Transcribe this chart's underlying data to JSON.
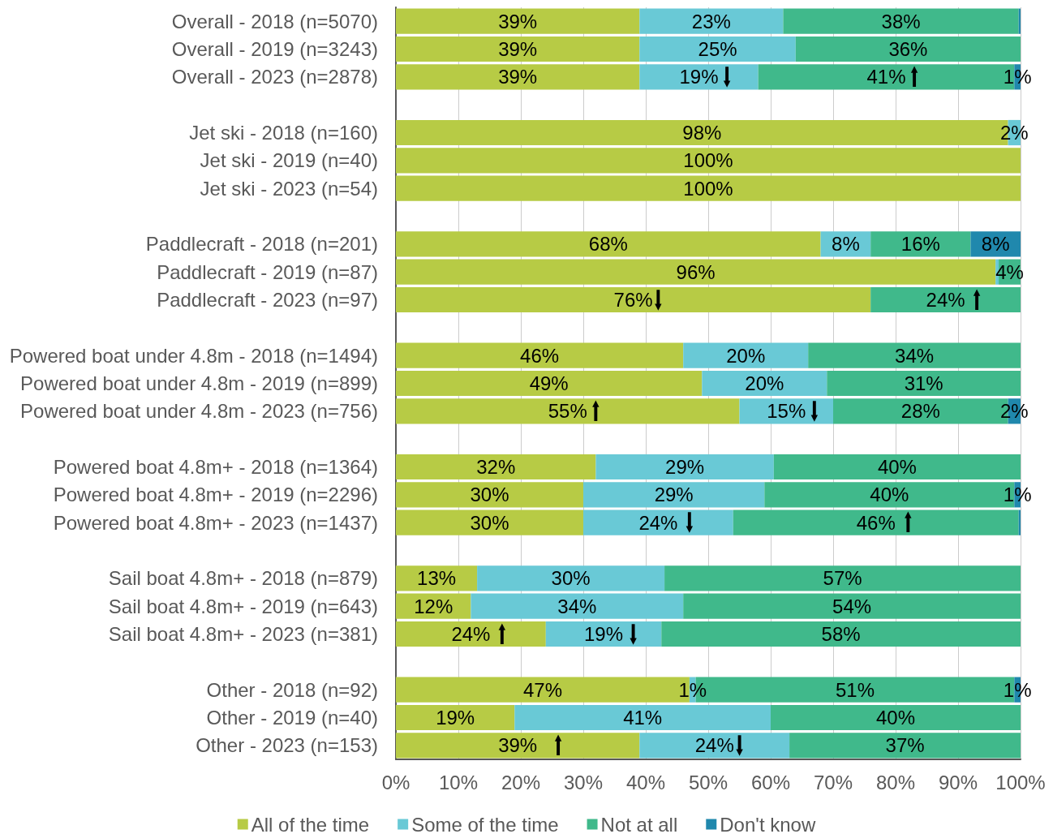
{
  "chart_data": {
    "type": "bar",
    "orientation": "horizontal",
    "stacked": true,
    "categories": [
      "Overall - 2018 (n=5070)",
      "Overall - 2019 (n=3243)",
      "Overall - 2023 (n=2878)",
      null,
      "Jet ski - 2018 (n=160)",
      "Jet ski - 2019 (n=40)",
      "Jet ski - 2023 (n=54)",
      null,
      "Paddlecraft - 2018 (n=201)",
      "Paddlecraft - 2019 (n=87)",
      "Paddlecraft - 2023 (n=97)",
      null,
      "Powered boat under 4.8m - 2018 (n=1494)",
      "Powered boat under 4.8m - 2019 (n=899)",
      "Powered boat under 4.8m - 2023 (n=756)",
      null,
      "Powered boat 4.8m+ - 2018 (n=1364)",
      "Powered boat 4.8m+ - 2019 (n=2296)",
      "Powered boat 4.8m+ - 2023 (n=1437)",
      null,
      "Sail boat 4.8m+ - 2018 (n=879)",
      "Sail boat 4.8m+ - 2019 (n=643)",
      "Sail boat 4.8m+ - 2023 (n=381)",
      null,
      "Other - 2018 (n=92)",
      "Other - 2019 (n=40)",
      "Other - 2023 (n=153)"
    ],
    "series": [
      {
        "name": "All of the time",
        "color": "#b7cb45",
        "values": [
          39,
          39,
          39,
          null,
          98,
          100,
          100,
          null,
          68,
          96,
          76,
          null,
          46,
          49,
          55,
          null,
          32,
          30,
          30,
          null,
          13,
          12,
          24,
          null,
          47,
          19,
          39
        ],
        "value_labels": [
          "39%",
          "39%",
          "39%",
          null,
          "98%",
          "100%",
          "100%",
          null,
          "68%",
          "96%",
          "76%",
          null,
          "46%",
          "49%",
          "55%",
          null,
          "32%",
          "30%",
          "30%",
          null,
          "13%",
          "12%",
          "24%",
          null,
          "47%",
          "19%",
          "39%"
        ]
      },
      {
        "name": "Some of the time",
        "color": "#69c9d6",
        "values": [
          23,
          25,
          19,
          null,
          2,
          null,
          null,
          null,
          8,
          0.5,
          null,
          null,
          20,
          20,
          15,
          null,
          28.5,
          29,
          24,
          null,
          30,
          34,
          18.5,
          null,
          1,
          41,
          24
        ],
        "value_labels": [
          "23%",
          "25%",
          "19%",
          null,
          "2%",
          null,
          null,
          null,
          "8%",
          null,
          null,
          null,
          "20%",
          "20%",
          "15%",
          null,
          "29%",
          "29%",
          "24%",
          null,
          "30%",
          "34%",
          "19%",
          null,
          "1%",
          "41%",
          "24%"
        ]
      },
      {
        "name": "Not at all",
        "color": "#40b98b",
        "values": [
          37.7,
          36,
          41,
          null,
          null,
          null,
          null,
          null,
          16,
          3.5,
          24,
          null,
          34,
          31,
          28,
          null,
          39.5,
          40,
          45.7,
          null,
          57,
          54,
          57.5,
          null,
          51,
          40,
          37
        ],
        "value_labels": [
          "38%",
          "36%",
          "41%",
          null,
          null,
          null,
          null,
          null,
          "16%",
          "4%",
          "24%",
          null,
          "34%",
          "31%",
          "28%",
          null,
          "40%",
          "40%",
          "46%",
          null,
          "57%",
          "54%",
          "58%",
          null,
          "51%",
          "40%",
          "37%"
        ]
      },
      {
        "name": "Don't know",
        "color": "#2088ad",
        "values": [
          0.3,
          null,
          1,
          null,
          null,
          null,
          null,
          null,
          8,
          null,
          null,
          null,
          null,
          null,
          2,
          null,
          null,
          1,
          0.3,
          null,
          null,
          null,
          null,
          null,
          1,
          null,
          null
        ],
        "value_labels": [
          null,
          null,
          "1%",
          null,
          null,
          null,
          null,
          null,
          "8%",
          null,
          null,
          null,
          null,
          null,
          "2%",
          null,
          null,
          "1%",
          null,
          null,
          null,
          null,
          null,
          null,
          "1%",
          null,
          null
        ]
      }
    ],
    "xlim": [
      0,
      100
    ],
    "xticks": [
      {
        "value": 0,
        "label": "0%"
      },
      {
        "value": 10,
        "label": "10%"
      },
      {
        "value": 20,
        "label": "20%"
      },
      {
        "value": 30,
        "label": "30%"
      },
      {
        "value": 40,
        "label": "40%"
      },
      {
        "value": 50,
        "label": "50%"
      },
      {
        "value": 60,
        "label": "60%"
      },
      {
        "value": 70,
        "label": "70%"
      },
      {
        "value": 80,
        "label": "80%"
      },
      {
        "value": 90,
        "label": "90%"
      },
      {
        "value": 100,
        "label": "100%"
      }
    ],
    "grid": "x",
    "legend": "bottom",
    "annotations": [
      {
        "text": "⬇",
        "x": 53,
        "y": "Overall - 2023 (n=2878)"
      },
      {
        "text": "⬆",
        "x": 83,
        "y": "Overall - 2023 (n=2878)"
      },
      {
        "text": "⬇",
        "x": 42,
        "y": "Paddlecraft - 2023 (n=97)"
      },
      {
        "text": "⬆",
        "x": 93,
        "y": "Paddlecraft - 2023 (n=97)"
      },
      {
        "text": "⬆",
        "x": 32,
        "y": "Powered boat under 4.8m - 2023 (n=756)"
      },
      {
        "text": "⬇",
        "x": 67,
        "y": "Powered boat under 4.8m - 2023 (n=756)"
      },
      {
        "text": "⬇",
        "x": 47,
        "y": "Powered boat 4.8m+ - 2023 (n=1437)"
      },
      {
        "text": "⬆",
        "x": 82,
        "y": "Powered boat 4.8m+ - 2023 (n=1437)"
      },
      {
        "text": "⬆",
        "x": 17,
        "y": "Sail boat 4.8m+ - 2023 (n=381)"
      },
      {
        "text": "⬇",
        "x": 38,
        "y": "Sail boat 4.8m+ - 2023 (n=381)"
      },
      {
        "text": "⬆",
        "x": 26,
        "y": "Other - 2023 (n=153)"
      },
      {
        "text": "⬇",
        "x": 55,
        "y": "Other - 2023 (n=153)"
      }
    ]
  }
}
